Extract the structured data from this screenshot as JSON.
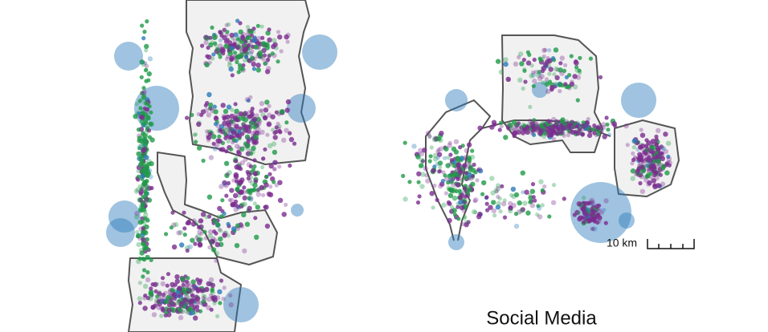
{
  "scale_bar": {
    "label": "10 km"
  },
  "caption": "Social Media"
}
